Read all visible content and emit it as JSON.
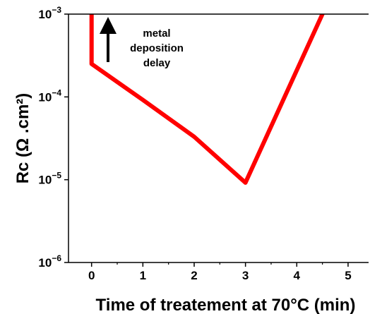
{
  "chart_data": {
    "type": "line",
    "title": "",
    "xlabel": "Time of treatement at 70°C (min)",
    "ylabel": "Rc (Ω .cm²)",
    "xscale": "linear",
    "yscale": "log",
    "xlim": [
      -0.45,
      5.4
    ],
    "ylim": [
      1e-06,
      0.001
    ],
    "x_ticks": [
      0,
      1,
      2,
      3,
      4,
      5
    ],
    "x_tick_labels": [
      "0",
      "1",
      "2",
      "3",
      "4",
      "5"
    ],
    "y_ticks": [
      1e-06,
      1e-05,
      0.0001,
      0.001
    ],
    "y_tick_labels": [
      {
        "base": "10",
        "exp": "−6"
      },
      {
        "base": "10",
        "exp": "−5"
      },
      {
        "base": "10",
        "exp": "−4"
      },
      {
        "base": "10",
        "exp": "−3"
      }
    ],
    "grid": false,
    "series": [
      {
        "color": "#ff0000",
        "x": [
          0,
          0,
          0,
          1,
          2,
          3,
          4.5
        ],
        "y": [
          0.001,
          0.0006,
          0.00025,
          9.2e-05,
          3.3e-05,
          9.2e-06,
          0.001
        ]
      }
    ],
    "annotations": [
      {
        "type": "arrow",
        "text_lines": [
          "metal",
          "deposition",
          "delay"
        ],
        "color": "#000000"
      }
    ]
  }
}
